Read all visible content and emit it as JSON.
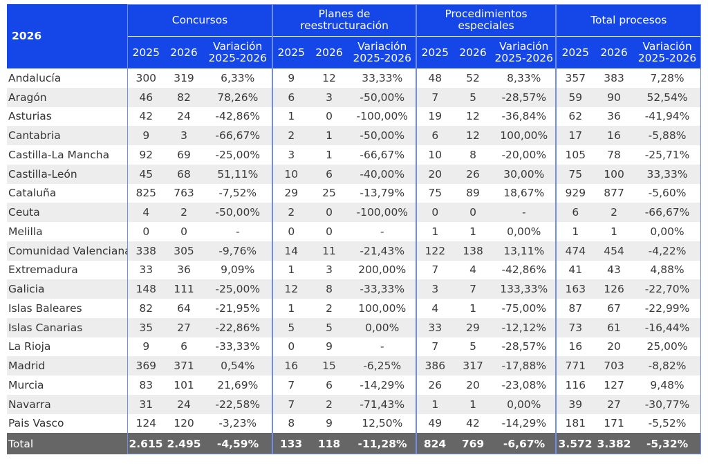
{
  "table": {
    "corner": "2026",
    "groups": [
      "Concursos",
      "Planes de reestructuración",
      "Procedimientos especiales",
      "Total procesos"
    ],
    "subheaders": [
      "2025",
      "2026",
      "Variación 2025-2026"
    ],
    "rows": [
      [
        "Andalucía",
        "300",
        "319",
        "6,33%",
        "9",
        "12",
        "33,33%",
        "48",
        "52",
        "8,33%",
        "357",
        "383",
        "7,28%"
      ],
      [
        "Aragón",
        "46",
        "82",
        "78,26%",
        "6",
        "3",
        "-50,00%",
        "7",
        "5",
        "-28,57%",
        "59",
        "90",
        "52,54%"
      ],
      [
        "Asturias",
        "42",
        "24",
        "-42,86%",
        "1",
        "0",
        "-100,00%",
        "19",
        "12",
        "-36,84%",
        "62",
        "36",
        "-41,94%"
      ],
      [
        "Cantabria",
        "9",
        "3",
        "-66,67%",
        "2",
        "1",
        "-50,00%",
        "6",
        "12",
        "100,00%",
        "17",
        "16",
        "-5,88%"
      ],
      [
        "Castilla-La Mancha",
        "92",
        "69",
        "-25,00%",
        "3",
        "1",
        "-66,67%",
        "10",
        "8",
        "-20,00%",
        "105",
        "78",
        "-25,71%"
      ],
      [
        "Castilla-León",
        "45",
        "68",
        "51,11%",
        "10",
        "6",
        "-40,00%",
        "20",
        "26",
        "30,00%",
        "75",
        "100",
        "33,33%"
      ],
      [
        "Cataluña",
        "825",
        "763",
        "-7,52%",
        "29",
        "25",
        "-13,79%",
        "75",
        "89",
        "18,67%",
        "929",
        "877",
        "-5,60%"
      ],
      [
        "Ceuta",
        "4",
        "2",
        "-50,00%",
        "2",
        "0",
        "-100,00%",
        "0",
        "0",
        "-",
        "6",
        "2",
        "-66,67%"
      ],
      [
        "Melilla",
        "0",
        "0",
        "-",
        "0",
        "0",
        "-",
        "1",
        "1",
        "0,00%",
        "1",
        "1",
        "0,00%"
      ],
      [
        "Comunidad Valenciana",
        "338",
        "305",
        "-9,76%",
        "14",
        "11",
        "-21,43%",
        "122",
        "138",
        "13,11%",
        "474",
        "454",
        "-4,22%"
      ],
      [
        "Extremadura",
        "33",
        "36",
        "9,09%",
        "1",
        "3",
        "200,00%",
        "7",
        "4",
        "-42,86%",
        "41",
        "43",
        "4,88%"
      ],
      [
        "Galicia",
        "148",
        "111",
        "-25,00%",
        "12",
        "8",
        "-33,33%",
        "3",
        "7",
        "133,33%",
        "163",
        "126",
        "-22,70%"
      ],
      [
        "Islas Baleares",
        "82",
        "64",
        "-21,95%",
        "1",
        "2",
        "100,00%",
        "4",
        "1",
        "-75,00%",
        "87",
        "67",
        "-22,99%"
      ],
      [
        "Islas Canarias",
        "35",
        "27",
        "-22,86%",
        "5",
        "5",
        "0,00%",
        "33",
        "29",
        "-12,12%",
        "73",
        "61",
        "-16,44%"
      ],
      [
        "La Rioja",
        "9",
        "6",
        "-33,33%",
        "0",
        "9",
        "-",
        "7",
        "5",
        "-28,57%",
        "16",
        "20",
        "25,00%"
      ],
      [
        "Madrid",
        "369",
        "371",
        "0,54%",
        "16",
        "15",
        "-6,25%",
        "386",
        "317",
        "-17,88%",
        "771",
        "703",
        "-8,82%"
      ],
      [
        "Murcia",
        "83",
        "101",
        "21,69%",
        "7",
        "6",
        "-14,29%",
        "26",
        "20",
        "-23,08%",
        "116",
        "127",
        "9,48%"
      ],
      [
        "Navarra",
        "31",
        "24",
        "-22,58%",
        "7",
        "2",
        "-71,43%",
        "1",
        "1",
        "0,00%",
        "39",
        "27",
        "-30,77%"
      ],
      [
        "Pais Vasco",
        "124",
        "120",
        "-3,23%",
        "8",
        "9",
        "12,50%",
        "49",
        "42",
        "-14,29%",
        "181",
        "171",
        "-5,52%"
      ]
    ],
    "total": [
      "Total",
      "2.615",
      "2.495",
      "-4,59%",
      "133",
      "118",
      "-11,28%",
      "824",
      "769",
      "-6,67%",
      "3.572",
      "3.382",
      "-5,32%"
    ]
  },
  "colors": {
    "header_blue": "#1446e8",
    "stripe_gray": "#ededed",
    "total_gray": "#666666",
    "outline_blue": "#6d8fe9"
  }
}
